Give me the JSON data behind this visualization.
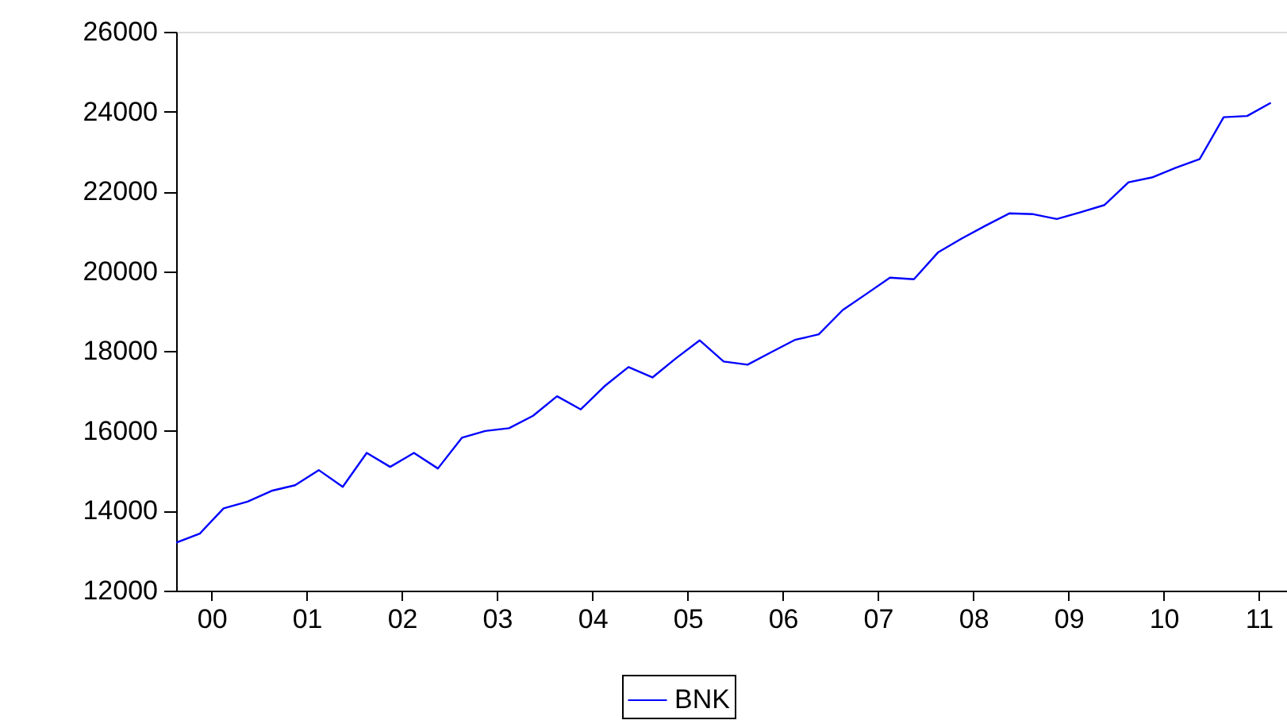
{
  "chart_data": {
    "type": "line",
    "x": [
      "2000-01",
      "2000-04",
      "2000-07",
      "2000-10",
      "2001-01",
      "2001-04",
      "2001-07",
      "2001-10",
      "2002-01",
      "2002-04",
      "2002-07",
      "2002-10",
      "2003-01",
      "2003-04",
      "2003-07",
      "2003-10",
      "2004-01",
      "2004-04",
      "2004-07",
      "2004-10",
      "2005-01",
      "2005-04",
      "2005-07",
      "2005-10",
      "2006-01",
      "2006-04",
      "2006-07",
      "2006-10",
      "2007-01",
      "2007-04",
      "2007-07",
      "2007-10",
      "2008-01",
      "2008-04",
      "2008-07",
      "2008-10",
      "2009-01",
      "2009-04",
      "2009-07",
      "2009-10",
      "2010-01",
      "2010-04",
      "2010-07",
      "2010-10",
      "2011-01",
      "2011-04",
      "2011-07"
    ],
    "series": [
      {
        "name": "BNK",
        "color": "#0000ff",
        "values": [
          13200,
          13430,
          14060,
          14230,
          14500,
          14640,
          15020,
          14600,
          15450,
          15100,
          15450,
          15060,
          15830,
          16000,
          16070,
          16380,
          16870,
          16540,
          17120,
          17600,
          17340,
          17820,
          18270,
          17740,
          17660,
          17970,
          18280,
          18420,
          19030,
          19430,
          19840,
          19800,
          20470,
          20820,
          21140,
          21450,
          21430,
          21310,
          21480,
          21660,
          22230,
          22350,
          22590,
          22810,
          23860,
          23890,
          24220
        ]
      }
    ],
    "xlim": [
      "2000-01",
      "2011-09"
    ],
    "xticks": [
      {
        "value": "2000-05-16",
        "label": "00"
      },
      {
        "value": "2001-05-16",
        "label": "01"
      },
      {
        "value": "2002-05-16",
        "label": "02"
      },
      {
        "value": "2003-05-16",
        "label": "03"
      },
      {
        "value": "2004-05-16",
        "label": "04"
      },
      {
        "value": "2005-05-16",
        "label": "05"
      },
      {
        "value": "2006-05-16",
        "label": "06"
      },
      {
        "value": "2007-05-16",
        "label": "07"
      },
      {
        "value": "2008-05-16",
        "label": "08"
      },
      {
        "value": "2009-05-16",
        "label": "09"
      },
      {
        "value": "2010-05-16",
        "label": "10"
      },
      {
        "value": "2011-05-16",
        "label": "11"
      }
    ],
    "ylim": [
      12000,
      26000
    ],
    "yticks": [
      12000,
      14000,
      16000,
      18000,
      20000,
      22000,
      24000,
      26000
    ],
    "grid": false,
    "legend": "bottom",
    "marker": "none",
    "line_style": "solid"
  }
}
